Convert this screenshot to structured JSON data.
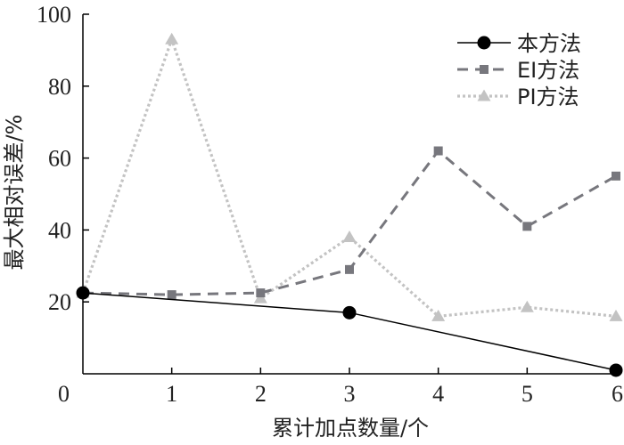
{
  "chart_data": {
    "type": "line",
    "title": "",
    "xlabel": "累计加点数量/个",
    "ylabel": "最大相对误差/%",
    "x": [
      0,
      1,
      2,
      3,
      4,
      5,
      6
    ],
    "xticks": [
      "0",
      "1",
      "2",
      "3",
      "4",
      "5",
      "6"
    ],
    "yticks": [
      "20",
      "40",
      "60",
      "80",
      "100"
    ],
    "xlim": [
      0,
      6
    ],
    "ylim": [
      0,
      100
    ],
    "grid": false,
    "legend_position": "top-right",
    "series": [
      {
        "name": "本方法",
        "x": [
          0,
          3,
          6
        ],
        "values": [
          22.5,
          17,
          1
        ],
        "color": "#000000",
        "line_style": "solid",
        "marker": "circle"
      },
      {
        "name": "EI方法",
        "x": [
          0,
          1,
          2,
          3,
          4,
          5,
          6
        ],
        "values": [
          22.5,
          22,
          22.5,
          29,
          62,
          41,
          55
        ],
        "color": "#77777d",
        "line_style": "dashed",
        "marker": "square"
      },
      {
        "name": "PI方法",
        "x": [
          0,
          1,
          2,
          3,
          4,
          5,
          6
        ],
        "values": [
          22.5,
          93,
          21,
          38,
          16,
          18.5,
          16
        ],
        "color": "#c3c3c3",
        "line_style": "dotted",
        "marker": "triangle"
      }
    ]
  }
}
